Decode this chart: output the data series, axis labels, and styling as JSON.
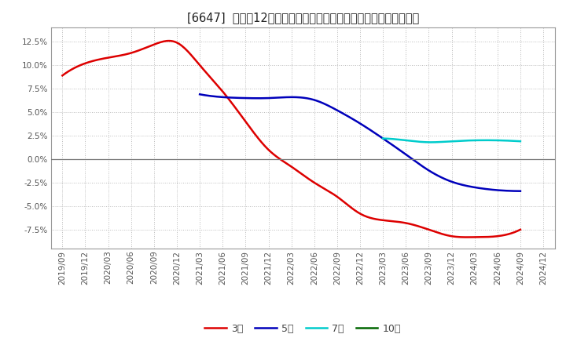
{
  "title": "[6647]  売上高12か月移動合計の対前年同期増減率の平均値の推移",
  "x_labels": [
    "2019/09",
    "2019/12",
    "2020/03",
    "2020/06",
    "2020/09",
    "2020/12",
    "2021/03",
    "2021/06",
    "2021/09",
    "2021/12",
    "2022/03",
    "2022/06",
    "2022/09",
    "2022/12",
    "2023/03",
    "2023/06",
    "2023/09",
    "2023/12",
    "2024/03",
    "2024/06",
    "2024/09",
    "2024/12"
  ],
  "series": {
    "3年": {
      "color": "#dd0000",
      "data": [
        [
          0,
          0.089
        ],
        [
          1,
          0.102
        ],
        [
          2,
          0.108
        ],
        [
          3,
          0.113
        ],
        [
          4,
          0.122
        ],
        [
          5,
          0.124
        ],
        [
          6,
          0.1
        ],
        [
          7,
          0.072
        ],
        [
          8,
          0.04
        ],
        [
          9,
          0.01
        ],
        [
          10,
          -0.008
        ],
        [
          11,
          -0.025
        ],
        [
          12,
          -0.04
        ],
        [
          13,
          -0.058
        ],
        [
          14,
          -0.065
        ],
        [
          15,
          -0.068
        ],
        [
          16,
          -0.075
        ],
        [
          17,
          -0.082
        ],
        [
          18,
          -0.083
        ],
        [
          19,
          -0.082
        ],
        [
          20,
          -0.075
        ]
      ]
    },
    "5年": {
      "color": "#0000bb",
      "data": [
        [
          6,
          0.069
        ],
        [
          7,
          0.066
        ],
        [
          8,
          0.065
        ],
        [
          9,
          0.065
        ],
        [
          10,
          0.066
        ],
        [
          11,
          0.063
        ],
        [
          12,
          0.052
        ],
        [
          13,
          0.038
        ],
        [
          14,
          0.022
        ],
        [
          15,
          0.005
        ],
        [
          16,
          -0.012
        ],
        [
          17,
          -0.024
        ],
        [
          18,
          -0.03
        ],
        [
          19,
          -0.033
        ],
        [
          20,
          -0.034
        ]
      ]
    },
    "7年": {
      "color": "#00cccc",
      "data": [
        [
          14,
          0.022
        ],
        [
          15,
          0.02
        ],
        [
          16,
          0.018
        ],
        [
          17,
          0.019
        ],
        [
          18,
          0.02
        ],
        [
          19,
          0.02
        ],
        [
          20,
          0.019
        ]
      ]
    },
    "10年": {
      "color": "#006600",
      "data": []
    }
  },
  "ylim": [
    -0.095,
    0.14
  ],
  "yticks": [
    -0.075,
    -0.05,
    -0.025,
    0.0,
    0.025,
    0.05,
    0.075,
    0.1,
    0.125
  ],
  "background_color": "#ffffff",
  "plot_bg_color": "#ffffff",
  "grid_color": "#bbbbbb",
  "title_fontsize": 10.5,
  "tick_fontsize": 7.5,
  "legend_fontsize": 9
}
